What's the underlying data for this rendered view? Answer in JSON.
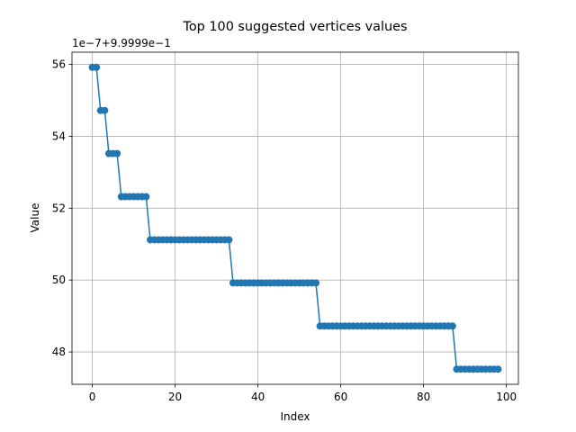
{
  "chart_data": {
    "type": "line",
    "title": "Top 100 suggested vertices values",
    "xlabel": "Index",
    "ylabel": "Value",
    "offset_text": "1e−7+9.9999e−1",
    "x": [
      0,
      1,
      2,
      3,
      4,
      5,
      6,
      7,
      8,
      9,
      10,
      11,
      12,
      13,
      14,
      15,
      16,
      17,
      18,
      19,
      20,
      21,
      22,
      23,
      24,
      25,
      26,
      27,
      28,
      29,
      30,
      31,
      32,
      33,
      34,
      35,
      36,
      37,
      38,
      39,
      40,
      41,
      42,
      43,
      44,
      45,
      46,
      47,
      48,
      49,
      50,
      51,
      52,
      53,
      54,
      55,
      56,
      57,
      58,
      59,
      60,
      61,
      62,
      63,
      64,
      65,
      66,
      67,
      68,
      69,
      70,
      71,
      72,
      73,
      74,
      75,
      76,
      77,
      78,
      79,
      80,
      81,
      82,
      83,
      84,
      85,
      86,
      87,
      88,
      89,
      90,
      91,
      92,
      93,
      94,
      95,
      96,
      97,
      98
    ],
    "series": [
      {
        "color": "#1f77b4",
        "values": [
          55.92,
          55.92,
          54.72,
          54.72,
          53.52,
          53.52,
          53.52,
          52.32,
          52.32,
          52.32,
          52.32,
          52.32,
          52.32,
          52.32,
          51.12,
          51.12,
          51.12,
          51.12,
          51.12,
          51.12,
          51.12,
          51.12,
          51.12,
          51.12,
          51.12,
          51.12,
          51.12,
          51.12,
          51.12,
          51.12,
          51.12,
          51.12,
          51.12,
          51.12,
          49.92,
          49.92,
          49.92,
          49.92,
          49.92,
          49.92,
          49.92,
          49.92,
          49.92,
          49.92,
          49.92,
          49.92,
          49.92,
          49.92,
          49.92,
          49.92,
          49.92,
          49.92,
          49.92,
          49.92,
          49.92,
          48.72,
          48.72,
          48.72,
          48.72,
          48.72,
          48.72,
          48.72,
          48.72,
          48.72,
          48.72,
          48.72,
          48.72,
          48.72,
          48.72,
          48.72,
          48.72,
          48.72,
          48.72,
          48.72,
          48.72,
          48.72,
          48.72,
          48.72,
          48.72,
          48.72,
          48.72,
          48.72,
          48.72,
          48.72,
          48.72,
          48.72,
          48.72,
          48.72,
          47.52,
          47.52,
          47.52,
          47.52,
          47.52,
          47.52,
          47.52,
          47.52,
          47.52,
          47.52,
          47.52
        ]
      }
    ],
    "xlim": [
      -4.9,
      102.9
    ],
    "ylim": [
      47.1,
      56.34
    ],
    "xticks": [
      0,
      20,
      40,
      60,
      80,
      100
    ],
    "yticks": [
      48,
      50,
      52,
      54,
      56
    ],
    "grid": true
  }
}
